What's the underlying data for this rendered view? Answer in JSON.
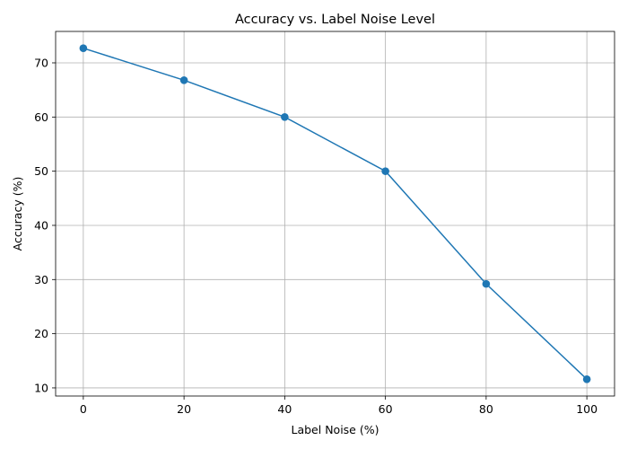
{
  "chart_data": {
    "type": "line",
    "title": "Accuracy vs. Label Noise Level",
    "xlabel": "Label Noise (%)",
    "ylabel": "Accuracy (%)",
    "x": [
      0,
      20,
      40,
      60,
      80,
      100
    ],
    "series": [
      {
        "values": [
          72.7,
          66.8,
          60.0,
          50.0,
          29.2,
          11.6
        ],
        "color": "#1f77b4",
        "marker": "circle"
      }
    ],
    "xlim": [
      -5.5,
      105.5
    ],
    "ylim": [
      8.5,
      75.8
    ],
    "xticks": [
      0,
      20,
      40,
      60,
      80,
      100
    ],
    "yticks": [
      10,
      20,
      30,
      40,
      50,
      60,
      70
    ],
    "grid": true
  }
}
